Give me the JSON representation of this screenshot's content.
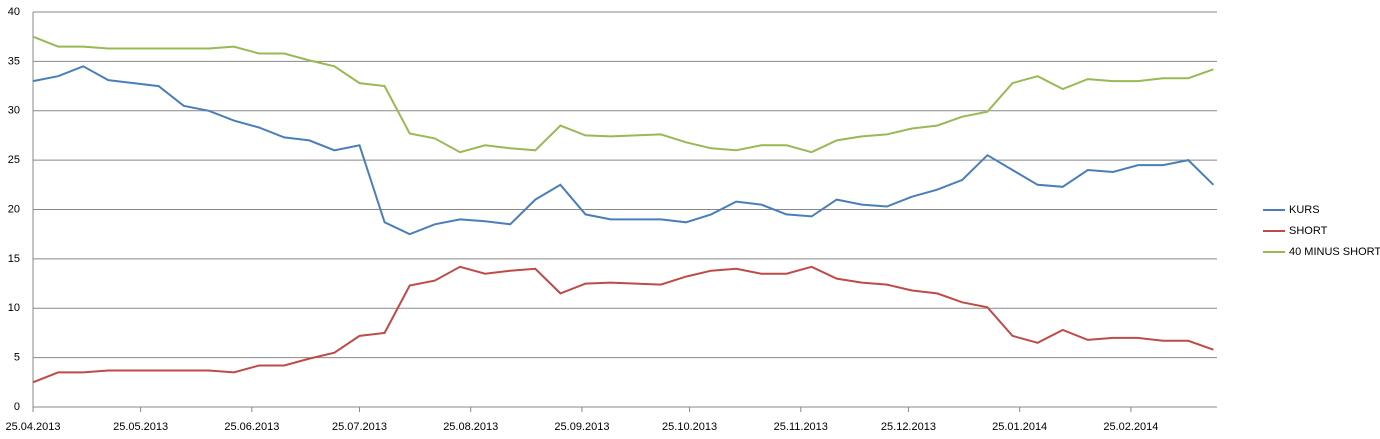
{
  "chart_data": {
    "type": "line",
    "x": [
      "25.04.2013",
      "02.05.2013",
      "09.05.2013",
      "16.05.2013",
      "23.05.2013",
      "30.05.2013",
      "06.06.2013",
      "13.06.2013",
      "20.06.2013",
      "27.06.2013",
      "04.07.2013",
      "11.07.2013",
      "18.07.2013",
      "25.07.2013",
      "01.08.2013",
      "08.08.2013",
      "15.08.2013",
      "22.08.2013",
      "29.08.2013",
      "05.09.2013",
      "12.09.2013",
      "19.09.2013",
      "26.09.2013",
      "03.10.2013",
      "10.10.2013",
      "17.10.2013",
      "24.10.2013",
      "31.10.2013",
      "07.11.2013",
      "14.11.2013",
      "21.11.2013",
      "28.11.2013",
      "05.12.2013",
      "12.12.2013",
      "19.12.2013",
      "26.12.2013",
      "02.01.2014",
      "09.01.2014",
      "16.01.2014",
      "23.01.2014",
      "30.01.2014",
      "06.02.2014",
      "13.02.2014",
      "20.02.2014",
      "27.02.2014",
      "06.03.2014",
      "13.03.2014",
      "20.03.2014"
    ],
    "series": [
      {
        "name": "KURS",
        "color": "#4a7ebb",
        "values": [
          33.0,
          33.5,
          34.5,
          33.1,
          32.8,
          32.5,
          30.5,
          30.0,
          29.0,
          28.3,
          27.3,
          27.0,
          26.0,
          26.5,
          18.7,
          17.5,
          18.5,
          19.0,
          18.8,
          18.5,
          21.0,
          22.5,
          19.5,
          19.0,
          19.0,
          19.0,
          18.7,
          19.5,
          20.8,
          20.5,
          19.5,
          19.3,
          21.0,
          20.5,
          20.3,
          21.3,
          22.0,
          23.0,
          25.5,
          24.0,
          22.5,
          22.3,
          24.0,
          23.8,
          24.5,
          24.5,
          25.0,
          22.5
        ]
      },
      {
        "name": "SHORT",
        "color": "#be4b48",
        "values": [
          2.5,
          3.5,
          3.5,
          3.7,
          3.7,
          3.7,
          3.7,
          3.7,
          3.5,
          4.2,
          4.2,
          4.9,
          5.5,
          7.2,
          7.5,
          12.3,
          12.8,
          14.2,
          13.5,
          13.8,
          14.0,
          11.5,
          12.5,
          12.6,
          12.5,
          12.4,
          13.2,
          13.8,
          14.0,
          13.5,
          13.5,
          14.2,
          13.0,
          12.6,
          12.4,
          11.8,
          11.5,
          10.6,
          10.1,
          7.2,
          6.5,
          7.8,
          6.8,
          7.0,
          7.0,
          6.7,
          6.7,
          5.8
        ]
      },
      {
        "name": "40 MINUS SHORT",
        "color": "#98b954",
        "values": [
          37.5,
          36.5,
          36.5,
          36.3,
          36.3,
          36.3,
          36.3,
          36.3,
          36.5,
          35.8,
          35.8,
          35.1,
          34.5,
          32.8,
          32.5,
          27.7,
          27.2,
          25.8,
          26.5,
          26.2,
          26.0,
          28.5,
          27.5,
          27.4,
          27.5,
          27.6,
          26.8,
          26.2,
          26.0,
          26.5,
          26.5,
          25.8,
          27.0,
          27.4,
          27.6,
          28.2,
          28.5,
          29.4,
          29.9,
          32.8,
          33.5,
          32.2,
          33.2,
          33.0,
          33.0,
          33.3,
          33.3,
          34.2
        ]
      }
    ],
    "xlim": [
      "25.04.2013",
      "21.03.2014"
    ],
    "xticks": [
      "25.04.2013",
      "25.05.2013",
      "25.06.2013",
      "25.07.2013",
      "25.08.2013",
      "25.09.2013",
      "25.10.2013",
      "25.11.2013",
      "25.12.2013",
      "25.01.2014",
      "25.02.2014"
    ],
    "ylim": [
      0,
      40
    ],
    "yticks": [
      0,
      5,
      10,
      15,
      20,
      25,
      30,
      35,
      40
    ],
    "grid": true,
    "legend": "right"
  }
}
